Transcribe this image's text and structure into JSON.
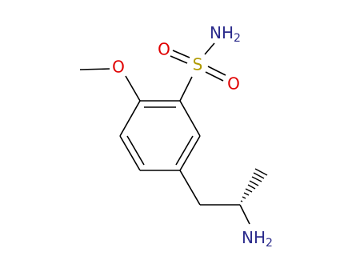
{
  "atoms": {
    "sulfonamide_n": {
      "main": "NH",
      "sub": "2"
    },
    "sulfur": "S",
    "oxygen_top": "O",
    "oxygen_bottom": "O",
    "methoxy_oxygen": "O",
    "amine_n": {
      "main": "NH",
      "sub": "2"
    }
  }
}
